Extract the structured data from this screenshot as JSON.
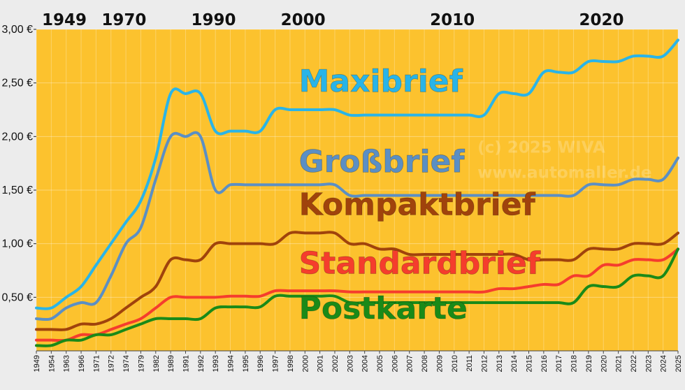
{
  "chart_data": {
    "type": "line",
    "ylim": [
      0,
      3
    ],
    "y_ticks": [
      "0,50 €",
      "1,00 €",
      "1,50 €",
      "2,00 €",
      "2,50 €",
      "3,00 €"
    ],
    "y_tick_values": [
      0.5,
      1.0,
      1.5,
      2.0,
      2.5,
      3.0
    ],
    "grid": true,
    "background": "#fcc22e",
    "era_labels": [
      "1949",
      "1970",
      "1990",
      "2000",
      "2010",
      "2020"
    ],
    "era_label_positions": [
      0,
      4,
      10,
      16,
      26,
      36
    ],
    "x": [
      "1949",
      "1954",
      "1963",
      "1966",
      "1971",
      "1972",
      "1974",
      "1979",
      "1982",
      "1989",
      "1991",
      "1992",
      "1993",
      "1994",
      "1995",
      "1996",
      "1997",
      "1998",
      "2000",
      "2001",
      "2002",
      "2003",
      "2004",
      "2005",
      "2006",
      "2007",
      "2008",
      "2009",
      "2010",
      "2011",
      "2012",
      "2013",
      "2014",
      "2015",
      "2016",
      "2017",
      "2018",
      "2019",
      "2020",
      "2021",
      "2022",
      "2023",
      "2024",
      "2025"
    ],
    "series": [
      {
        "name": "Maxibrief",
        "color": "#29b4e8",
        "values": [
          0.4,
          0.4,
          0.5,
          0.6,
          0.8,
          1.0,
          1.2,
          1.4,
          1.8,
          2.4,
          2.4,
          2.4,
          2.05,
          2.05,
          2.05,
          2.05,
          2.25,
          2.25,
          2.25,
          2.25,
          2.25,
          2.2,
          2.2,
          2.2,
          2.2,
          2.2,
          2.2,
          2.2,
          2.2,
          2.2,
          2.2,
          2.4,
          2.4,
          2.4,
          2.6,
          2.6,
          2.6,
          2.7,
          2.7,
          2.7,
          2.75,
          2.75,
          2.75,
          2.9
        ]
      },
      {
        "name": "Großbrief",
        "color": "#5b8fc4",
        "values": [
          0.3,
          0.3,
          0.4,
          0.45,
          0.45,
          0.7,
          1.0,
          1.15,
          1.6,
          2.0,
          2.0,
          2.0,
          1.5,
          1.55,
          1.55,
          1.55,
          1.55,
          1.55,
          1.55,
          1.55,
          1.55,
          1.45,
          1.45,
          1.45,
          1.45,
          1.45,
          1.45,
          1.45,
          1.45,
          1.45,
          1.45,
          1.45,
          1.45,
          1.45,
          1.45,
          1.45,
          1.45,
          1.55,
          1.55,
          1.55,
          1.6,
          1.6,
          1.6,
          1.8
        ]
      },
      {
        "name": "Kompaktbrief",
        "color": "#a0430c",
        "values": [
          0.2,
          0.2,
          0.2,
          0.25,
          0.25,
          0.3,
          0.4,
          0.5,
          0.6,
          0.85,
          0.85,
          0.85,
          1.0,
          1.0,
          1.0,
          1.0,
          1.0,
          1.1,
          1.1,
          1.1,
          1.1,
          1.0,
          1.0,
          0.95,
          0.95,
          0.9,
          0.9,
          0.9,
          0.9,
          0.9,
          0.9,
          0.9,
          0.9,
          0.85,
          0.85,
          0.85,
          0.85,
          0.95,
          0.95,
          0.95,
          1.0,
          1.0,
          1.0,
          1.1
        ]
      },
      {
        "name": "Standardbrief",
        "color": "#f53d2d",
        "values": [
          0.1,
          0.1,
          0.1,
          0.15,
          0.15,
          0.2,
          0.25,
          0.3,
          0.4,
          0.5,
          0.5,
          0.5,
          0.5,
          0.51,
          0.51,
          0.51,
          0.56,
          0.56,
          0.56,
          0.56,
          0.56,
          0.55,
          0.55,
          0.55,
          0.55,
          0.55,
          0.55,
          0.55,
          0.55,
          0.55,
          0.55,
          0.58,
          0.58,
          0.6,
          0.62,
          0.62,
          0.7,
          0.7,
          0.8,
          0.8,
          0.85,
          0.85,
          0.85,
          0.95
        ]
      },
      {
        "name": "Postkarte",
        "color": "#1a8a18",
        "values": [
          0.05,
          0.05,
          0.1,
          0.1,
          0.15,
          0.15,
          0.2,
          0.25,
          0.3,
          0.3,
          0.3,
          0.3,
          0.4,
          0.41,
          0.41,
          0.41,
          0.51,
          0.51,
          0.51,
          0.51,
          0.51,
          0.45,
          0.45,
          0.45,
          0.45,
          0.45,
          0.45,
          0.45,
          0.45,
          0.45,
          0.45,
          0.45,
          0.45,
          0.45,
          0.45,
          0.45,
          0.45,
          0.6,
          0.6,
          0.6,
          0.7,
          0.7,
          0.7,
          0.95
        ]
      }
    ],
    "series_label_positions": [
      {
        "series": 0,
        "x_index": 17.5,
        "y": 2.42
      },
      {
        "series": 1,
        "x_index": 17.5,
        "y": 1.67
      },
      {
        "series": 2,
        "x_index": 17.5,
        "y": 1.27
      },
      {
        "series": 3,
        "x_index": 17.5,
        "y": 0.72
      },
      {
        "series": 4,
        "x_index": 17.5,
        "y": 0.3
      }
    ],
    "watermark": [
      "(c) 2025 WIVA",
      "www.automaller.de"
    ]
  }
}
